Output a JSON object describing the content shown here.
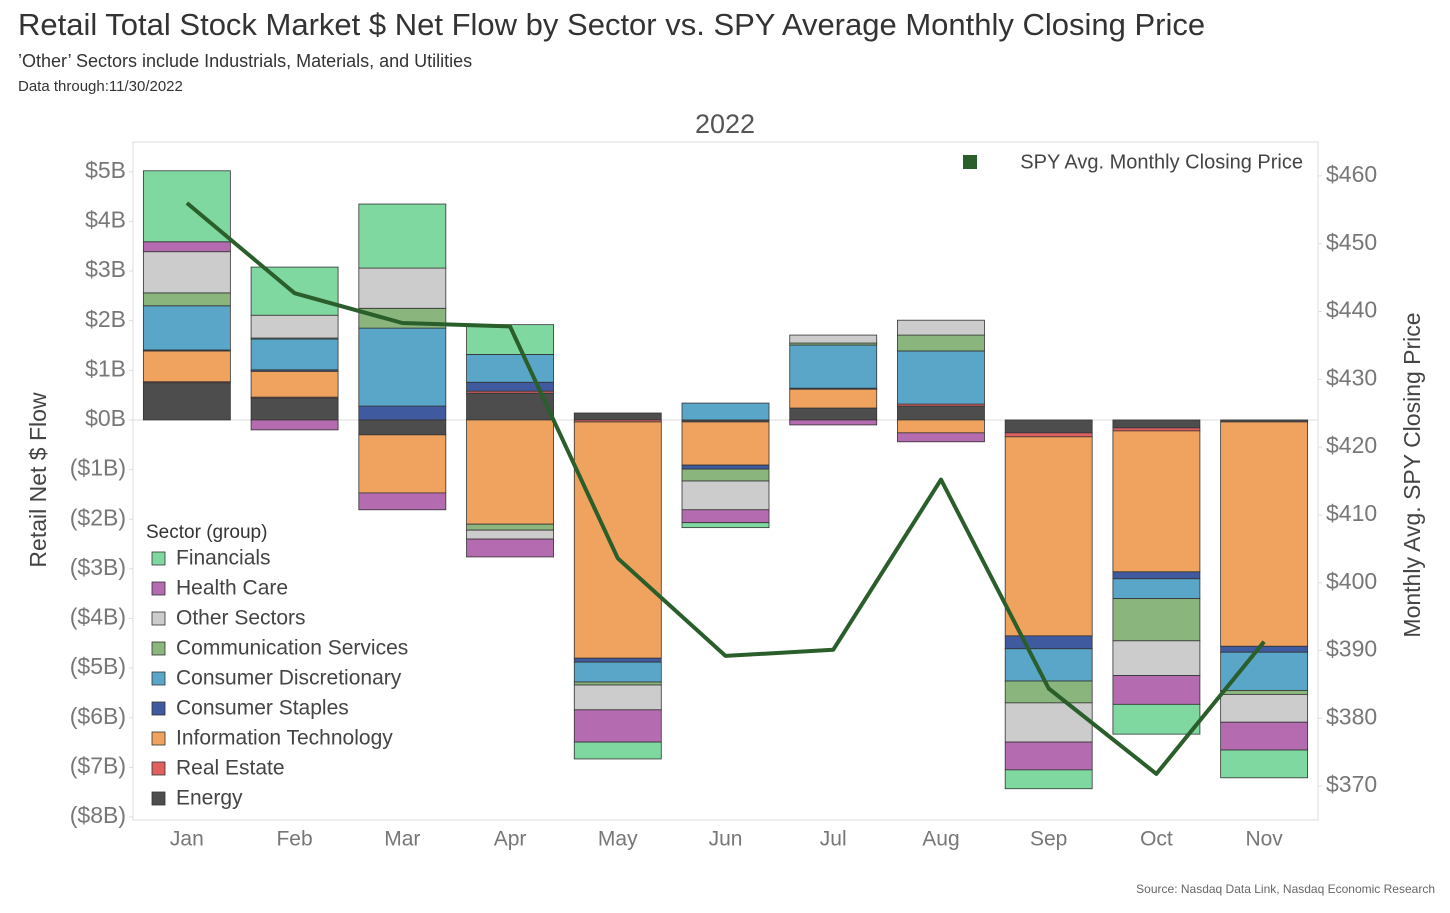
{
  "chart_data": {
    "type": "bar",
    "title": "Retail Total Stock Market $ Net Flow by Sector vs. SPY Average Monthly Closing Price",
    "subtitle": "’Other’ Sectors include Industrials, Materials, and Utilities",
    "note": "Data through:11/30/2022",
    "panel_title": "2022",
    "y_label": "Retail Net $ Flow",
    "y2_label": "Monthly Avg. SPY Closing Price",
    "legend_title": "Sector (group)",
    "source": "Source: Nasdaq Data Link, Nasdaq Economic Research",
    "categories": [
      "Jan",
      "Feb",
      "Mar",
      "Apr",
      "May",
      "Jun",
      "Jul",
      "Aug",
      "Sep",
      "Oct",
      "Nov"
    ],
    "ylim": [
      -8.06,
      5.6
    ],
    "yticks": [
      {
        "value": 5,
        "label": "$5B"
      },
      {
        "value": 4,
        "label": "$4B"
      },
      {
        "value": 3,
        "label": "$3B"
      },
      {
        "value": 2,
        "label": "$2B"
      },
      {
        "value": 1,
        "label": "$1B"
      },
      {
        "value": 0,
        "label": "$0B"
      },
      {
        "value": -1,
        "label": "($1B)"
      },
      {
        "value": -2,
        "label": "($2B)"
      },
      {
        "value": -3,
        "label": "($3B)"
      },
      {
        "value": -4,
        "label": "($4B)"
      },
      {
        "value": -5,
        "label": "($5B)"
      },
      {
        "value": -6,
        "label": "($6B)"
      },
      {
        "value": -7,
        "label": "($7B)"
      },
      {
        "value": -8,
        "label": "($8B)"
      }
    ],
    "y2lim": [
      365,
      465
    ],
    "y2ticks": [
      {
        "value": 460,
        "label": "$460"
      },
      {
        "value": 450,
        "label": "$450"
      },
      {
        "value": 440,
        "label": "$440"
      },
      {
        "value": 430,
        "label": "$430"
      },
      {
        "value": 420,
        "label": "$420"
      },
      {
        "value": 410,
        "label": "$410"
      },
      {
        "value": 400,
        "label": "$400"
      },
      {
        "value": 390,
        "label": "$390"
      },
      {
        "value": 380,
        "label": "$380"
      },
      {
        "value": 370,
        "label": "$370"
      }
    ],
    "series": [
      {
        "name": "Financials",
        "color": "#7fd89f",
        "values": [
          1.43,
          0.97,
          1.29,
          0.6,
          -0.34,
          -0.1,
          0,
          0,
          -0.38,
          -0.6,
          -0.56
        ]
      },
      {
        "name": "Health Care",
        "color": "#b56bb0",
        "values": [
          0.2,
          -0.2,
          -0.34,
          -0.36,
          -0.65,
          -0.26,
          -0.1,
          -0.18,
          -0.56,
          -0.58,
          -0.56
        ]
      },
      {
        "name": "Other Sectors",
        "color": "#cccccc",
        "values": [
          0.83,
          0.46,
          0.81,
          -0.18,
          -0.5,
          -0.58,
          0.16,
          0.3,
          -0.79,
          -0.7,
          -0.56
        ]
      },
      {
        "name": "Communication Services",
        "color": "#8ab57c",
        "values": [
          0.26,
          0.02,
          0.4,
          -0.12,
          -0.06,
          -0.24,
          0.04,
          0.32,
          -0.44,
          -0.85,
          -0.08
        ]
      },
      {
        "name": "Consumer Discretionary",
        "color": "#5aa6c8",
        "values": [
          0.89,
          0.62,
          1.57,
          0.56,
          -0.4,
          0.34,
          0.87,
          1.07,
          -0.65,
          -0.4,
          -0.77
        ]
      },
      {
        "name": "Consumer Staples",
        "color": "#3f5a9e",
        "values": [
          0.02,
          0.03,
          0.28,
          0.18,
          -0.08,
          -0.08,
          0.02,
          0,
          -0.26,
          -0.14,
          -0.12
        ]
      },
      {
        "name": "Information Technology",
        "color": "#f0a35e",
        "values": [
          0.62,
          0.52,
          -1.17,
          -2.1,
          -4.76,
          -0.87,
          0.38,
          -0.26,
          -4.01,
          -2.84,
          -4.52
        ]
      },
      {
        "name": "Real Estate",
        "color": "#e06060",
        "values": [
          0.02,
          0.02,
          0,
          0.04,
          -0.04,
          0,
          0,
          0.04,
          -0.08,
          -0.06,
          0
        ]
      },
      {
        "name": "Energy",
        "color": "#4d4d4d",
        "values": [
          0.75,
          0.44,
          -0.3,
          0.54,
          0.14,
          -0.04,
          0.24,
          0.28,
          -0.26,
          -0.16,
          -0.04
        ]
      },
      {
        "name": "SPY Avg. Monthly Closing Price",
        "color": "#2a5e2a",
        "type": "line",
        "axis": "y2",
        "values": [
          456.0,
          442.7,
          438.3,
          437.8,
          403.6,
          389.2,
          390.1,
          415.2,
          384.4,
          371.8,
          391.3
        ]
      }
    ]
  }
}
